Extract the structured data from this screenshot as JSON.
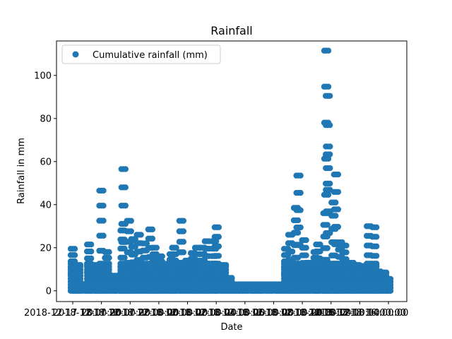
{
  "chart_data": {
    "type": "scatter",
    "title": "Rainfall",
    "xlabel": "Date",
    "ylabel": "Rainfall in mm",
    "ylim": [
      -5,
      116
    ],
    "yticks": [
      0,
      20,
      40,
      60,
      80,
      100
    ],
    "xtick_labels": [
      "2018-12-17 18:00:00",
      "2018-12-17 20:00:00",
      "2018-12-17 22:00:00",
      "2018-12-18 00:00:00",
      "2018-12-18 02:00:00",
      "2018-12-18 04:00:00",
      "2018-12-18 06:00:00",
      "2018-12-18 08:00:00",
      "2018-12-18 10:00:00",
      "2018-12-18 12:00:00",
      "2018-12-18 14:00:00",
      "2018-12-18 16:00:00"
    ],
    "grid": false,
    "legend_position": "top-left",
    "series": [
      {
        "name": "Cumulative rainfall (mm)",
        "color": "#1f77b4",
        "marker": "circle",
        "peaks": [
          [
            0.0,
            19.5
          ],
          [
            0.03,
            12
          ],
          [
            0.1,
            21.5
          ],
          [
            0.14,
            12
          ],
          [
            0.175,
            46.5
          ],
          [
            0.205,
            18
          ],
          [
            0.255,
            7
          ],
          [
            0.3,
            28
          ],
          [
            0.31,
            56.5
          ],
          [
            0.34,
            32.5
          ],
          [
            0.37,
            24
          ],
          [
            0.4,
            26
          ],
          [
            0.44,
            22
          ],
          [
            0.47,
            28.5
          ],
          [
            0.5,
            20
          ],
          [
            0.53,
            16
          ],
          [
            0.56,
            12.5
          ],
          [
            0.6,
            17
          ],
          [
            0.62,
            20
          ],
          [
            0.66,
            32.5
          ],
          [
            0.7,
            14
          ],
          [
            0.73,
            17.5
          ],
          [
            0.76,
            20
          ],
          [
            0.79,
            20
          ],
          [
            0.82,
            23
          ],
          [
            0.86,
            23
          ],
          [
            0.88,
            29.5
          ],
          [
            0.92,
            12
          ],
          [
            0.96,
            6
          ],
          [
            1.0,
            1.5
          ],
          [
            1.05,
            1.5
          ],
          [
            1.1,
            1.5
          ],
          [
            1.15,
            1.5
          ],
          [
            1.2,
            1.5
          ],
          [
            1.26,
            1.5
          ],
          [
            1.3,
            19.5
          ],
          [
            1.33,
            26
          ],
          [
            1.36,
            38.5
          ],
          [
            1.38,
            53.5
          ],
          [
            1.41,
            23.5
          ],
          [
            1.44,
            13
          ],
          [
            1.48,
            18
          ],
          [
            1.5,
            21.5
          ],
          [
            1.54,
            36
          ],
          [
            1.55,
            111.5
          ],
          [
            1.555,
            90.5
          ],
          [
            1.56,
            67
          ],
          [
            1.59,
            41
          ],
          [
            1.61,
            54
          ],
          [
            1.63,
            22.5
          ],
          [
            1.66,
            21
          ],
          [
            1.7,
            13
          ],
          [
            1.74,
            12
          ],
          [
            1.78,
            11.5
          ],
          [
            1.81,
            30
          ],
          [
            1.84,
            29.5
          ],
          [
            1.87,
            9
          ],
          [
            1.9,
            8.5
          ],
          [
            1.93,
            5.5
          ]
        ]
      }
    ]
  }
}
